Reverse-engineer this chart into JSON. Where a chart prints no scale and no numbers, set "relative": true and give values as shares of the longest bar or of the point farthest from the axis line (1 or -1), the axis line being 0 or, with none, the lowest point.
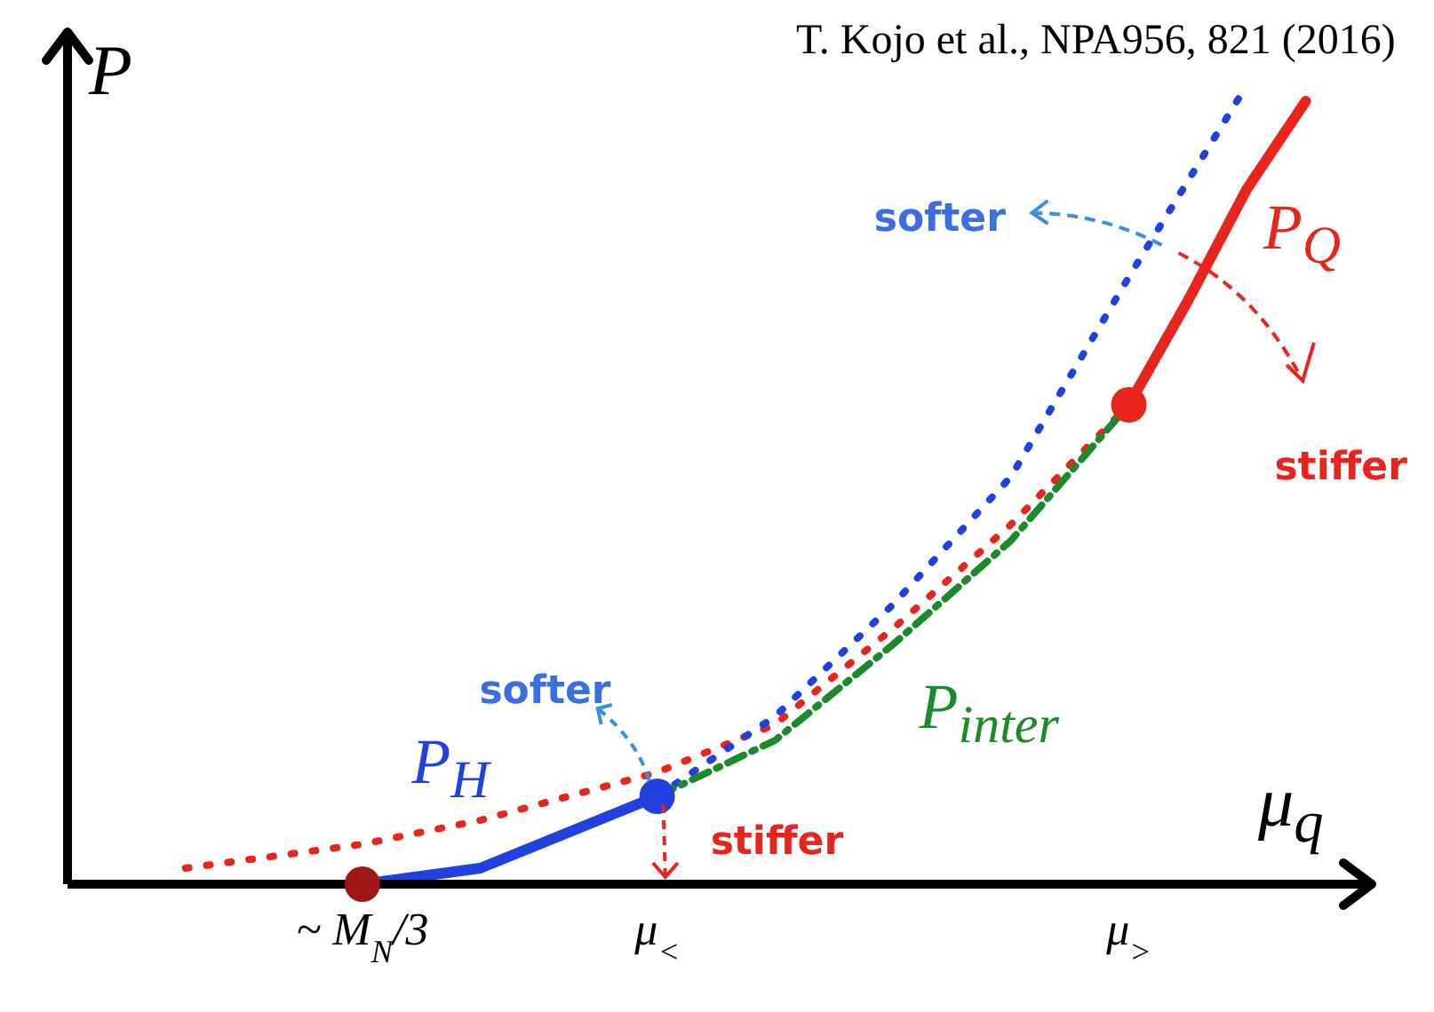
{
  "chart_data": {
    "type": "line",
    "relative": true,
    "xlabel": "μ$_{q}$",
    "ylabel": "P",
    "annotations": [
      "T. Kojo et al., NPA956, 821 (2016)",
      "softer",
      "stiffer",
      "softer",
      "stiffer"
    ],
    "categories": [
      null,
      null,
      null,
      null,
      null,
      "~ M$_{N}$/3",
      null,
      null,
      null,
      null,
      "μ$_{<}$",
      null,
      null,
      null,
      null,
      null,
      null,
      null,
      "μ$_{>}$",
      null,
      null,
      null,
      null
    ],
    "series": [
      {
        "color": "#e8241c",
        "line_style": "dotted",
        "values": [
          null,
          null,
          0.02,
          null,
          null,
          0.05,
          null,
          0.08,
          null,
          null,
          0.14,
          null,
          0.2,
          null,
          0.32,
          null,
          0.45,
          null,
          0.6,
          null,
          null,
          null,
          null
        ]
      },
      {
        "color": "#2040e0",
        "line_style": "dotted",
        "values": [
          null,
          null,
          null,
          null,
          null,
          null,
          null,
          null,
          null,
          null,
          0.11,
          null,
          0.21,
          null,
          0.35,
          null,
          0.51,
          null,
          0.76,
          0.88,
          1,
          null,
          null
        ]
      },
      {
        "name": "P$_{inter}$",
        "color": "#1a8a2a",
        "line_style": "dashed",
        "values": [
          null,
          null,
          null,
          null,
          null,
          null,
          null,
          null,
          null,
          null,
          0.11,
          null,
          0.18,
          null,
          0.3,
          null,
          0.43,
          null,
          0.6,
          null,
          null,
          null,
          null
        ]
      },
      {
        "name": "P$_{H}$",
        "color": "#2040e0",
        "line_style": "solid",
        "values": [
          null,
          null,
          null,
          null,
          null,
          0,
          null,
          0.02,
          null,
          null,
          0.11,
          null,
          null,
          null,
          null,
          null,
          null,
          null,
          null,
          null,
          null,
          null,
          null
        ]
      },
      {
        "name": "P$_{Q}$",
        "color": "#e8241c",
        "line_style": "solid",
        "values": [
          null,
          null,
          null,
          null,
          null,
          null,
          null,
          null,
          null,
          null,
          null,
          null,
          null,
          null,
          null,
          null,
          null,
          null,
          0.6,
          0.73,
          0.87,
          0.98,
          null
        ]
      },
      {
        "type": "scatter",
        "marker": "circle",
        "colors": [
          null,
          null,
          null,
          null,
          null,
          "#a01515",
          null,
          null,
          null,
          null,
          "#2040e0",
          null,
          null,
          null,
          null,
          null,
          null,
          null,
          "#e8241c",
          null,
          null,
          null,
          null
        ],
        "values": [
          null,
          null,
          null,
          null,
          null,
          0,
          null,
          null,
          null,
          null,
          0.11,
          null,
          null,
          null,
          null,
          null,
          null,
          null,
          0.6,
          null,
          null,
          null,
          null
        ]
      }
    ],
    "marker": "none",
    "grid": false,
    "tick_labels": "x"
  }
}
